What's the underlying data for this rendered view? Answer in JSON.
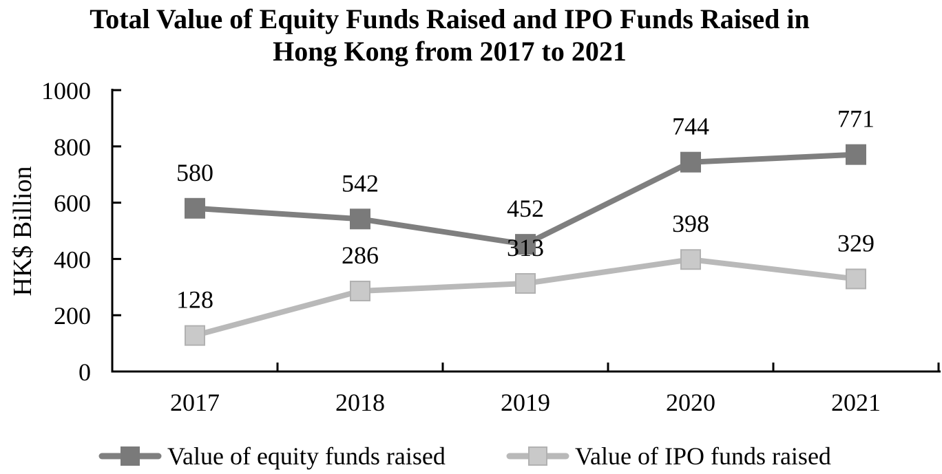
{
  "chart_data": {
    "type": "line",
    "title": "Total Value of Equity Funds Raised and IPO Funds Raised in Hong Kong from 2017 to 2021",
    "title_lines": [
      "Total Value of Equity Funds Raised and IPO Funds Raised in",
      "Hong Kong from 2017 to 2021"
    ],
    "xlabel": "",
    "ylabel": "HK$ Billion",
    "categories": [
      "2017",
      "2018",
      "2019",
      "2020",
      "2021"
    ],
    "series": [
      {
        "name": "Value of equity funds raised",
        "values": [
          580,
          542,
          452,
          744,
          771
        ],
        "line_color": "#7f7f7f",
        "marker_fill": "#7a7a7a",
        "marker_stroke": "#7a7a7a"
      },
      {
        "name": "Value of IPO funds raised",
        "values": [
          128,
          286,
          313,
          398,
          329
        ],
        "line_color": "#b9b9b9",
        "marker_fill": "#c9c9c9",
        "marker_stroke": "#b1b1b1"
      }
    ],
    "ylim": [
      0,
      1000
    ],
    "y_ticks": [
      0,
      200,
      400,
      600,
      800,
      1000
    ],
    "grid": false,
    "marker": "square",
    "data_labels": true,
    "legend_position": "bottom",
    "axis_color": "#000000",
    "label_color": "#000000"
  }
}
